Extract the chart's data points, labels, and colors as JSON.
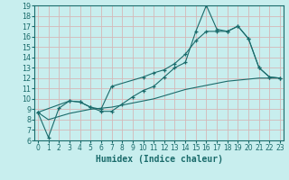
{
  "xlabel": "Humidex (Indice chaleur)",
  "bg_color": "#c8eeee",
  "line_color": "#1a6b6b",
  "grid_color": "#c8d8d0",
  "xlim": [
    0,
    23
  ],
  "ylim": [
    6,
    19
  ],
  "xticks": [
    0,
    1,
    2,
    3,
    4,
    5,
    6,
    7,
    8,
    9,
    10,
    11,
    12,
    13,
    14,
    15,
    16,
    17,
    18,
    19,
    20,
    21,
    22,
    23
  ],
  "yticks": [
    6,
    7,
    8,
    9,
    10,
    11,
    12,
    13,
    14,
    15,
    16,
    17,
    18,
    19
  ],
  "line1_x": [
    0,
    1,
    2,
    3,
    4,
    5,
    6,
    7,
    8,
    9,
    10,
    11,
    12,
    13,
    14,
    15,
    16,
    17,
    18,
    19,
    20,
    21,
    22,
    23
  ],
  "line1_y": [
    8.7,
    6.3,
    9.1,
    9.8,
    9.7,
    9.2,
    8.8,
    8.8,
    9.5,
    10.2,
    10.8,
    11.2,
    12.1,
    13.0,
    13.5,
    16.5,
    19.0,
    16.7,
    16.5,
    17.0,
    15.8,
    13.0,
    12.1,
    12.0
  ],
  "line2_x": [
    0,
    3,
    4,
    5,
    6,
    7,
    10,
    11,
    12,
    13,
    14,
    15,
    16,
    17,
    18,
    19,
    20,
    21,
    22,
    23
  ],
  "line2_y": [
    8.7,
    9.8,
    9.7,
    9.2,
    9.0,
    11.2,
    12.1,
    12.5,
    12.8,
    13.4,
    14.3,
    15.6,
    16.5,
    16.5,
    16.5,
    17.0,
    15.8,
    13.0,
    12.1,
    12.0
  ],
  "line3_x": [
    0,
    1,
    2,
    3,
    4,
    5,
    6,
    7,
    8,
    9,
    10,
    11,
    12,
    13,
    14,
    15,
    16,
    17,
    18,
    19,
    20,
    21,
    22,
    23
  ],
  "line3_y": [
    8.7,
    8.0,
    8.3,
    8.6,
    8.8,
    9.0,
    9.1,
    9.2,
    9.4,
    9.6,
    9.8,
    10.0,
    10.3,
    10.6,
    10.9,
    11.1,
    11.3,
    11.5,
    11.7,
    11.8,
    11.9,
    12.0,
    12.0,
    12.0
  ],
  "xlabel_fontsize": 7,
  "tick_fontsize": 5.5
}
